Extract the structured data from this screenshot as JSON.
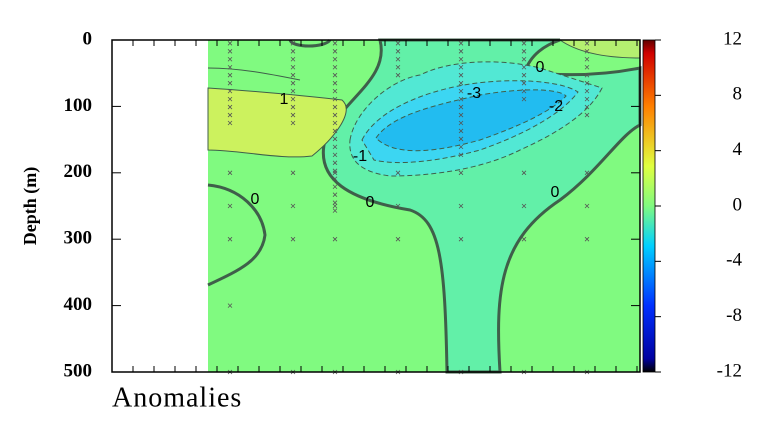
{
  "chart_data": {
    "type": "contour",
    "title": "Anomalies",
    "ylabel": "Depth (m)",
    "ylim": [
      0,
      500
    ],
    "yticks": [
      0,
      100,
      200,
      300,
      400,
      500
    ],
    "y_inverted": true,
    "contour_levels": [
      0,
      1,
      -1,
      -2,
      -3
    ],
    "colorbar": {
      "ylim": [
        -12,
        12
      ],
      "yticks": [
        12,
        8,
        4,
        0,
        -4,
        -8,
        -12
      ]
    }
  }
}
